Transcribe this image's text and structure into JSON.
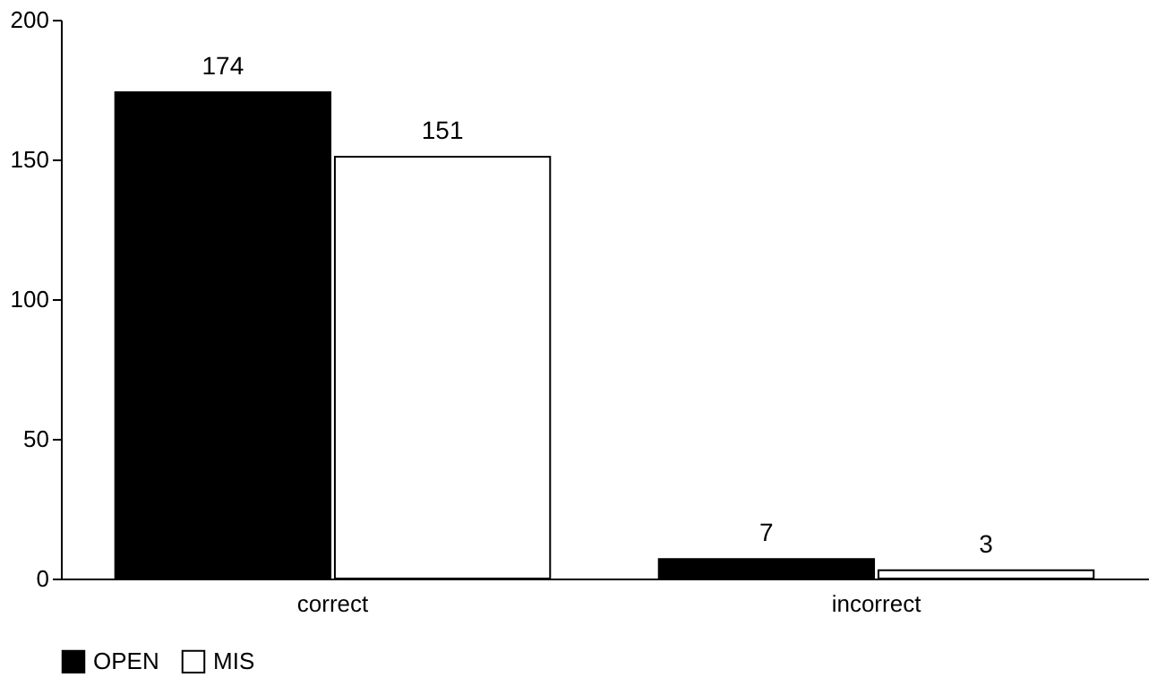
{
  "chart_data": {
    "type": "bar",
    "categories": [
      "correct",
      "incorrect"
    ],
    "series": [
      {
        "name": "OPEN",
        "color": "#000000",
        "values": [
          174,
          7
        ]
      },
      {
        "name": "MIS",
        "color": "#ffffff",
        "values": [
          151,
          3
        ]
      }
    ],
    "ylim": [
      0,
      200
    ],
    "yticks": [
      0,
      50,
      100,
      150,
      200
    ],
    "grid": false,
    "legend": "bottom",
    "data_labels": true
  }
}
